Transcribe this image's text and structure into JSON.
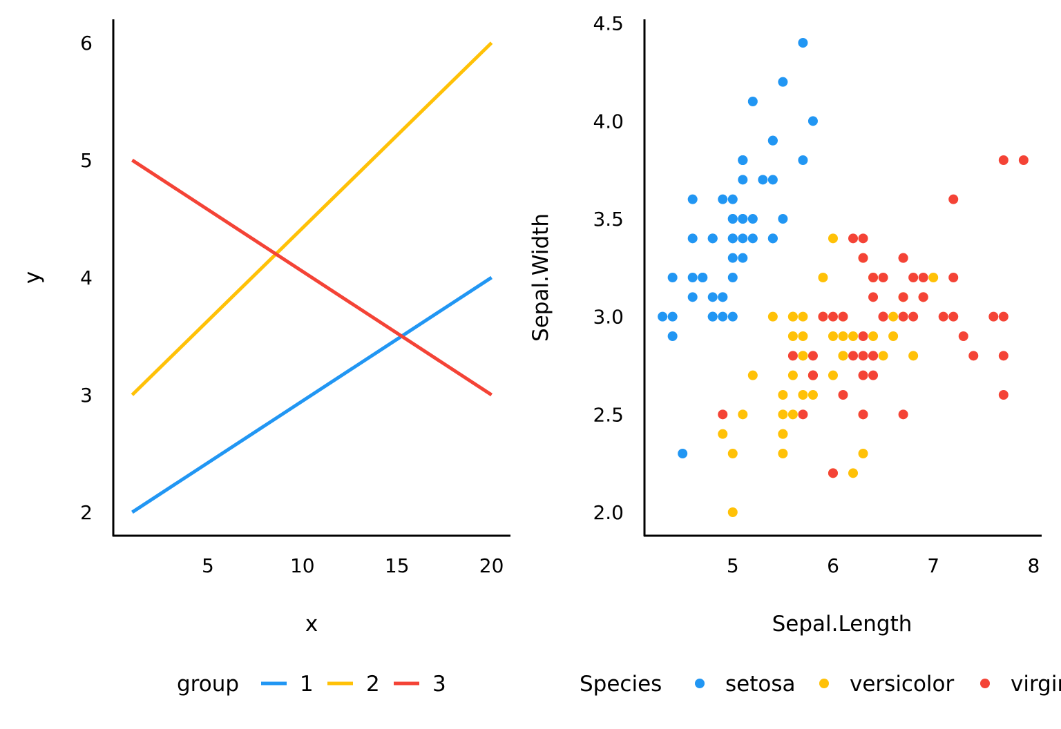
{
  "chart_data": [
    {
      "type": "line",
      "xlabel": "x",
      "ylabel": "y",
      "xlim": [
        0,
        21
      ],
      "ylim": [
        1.8,
        6.2
      ],
      "x_ticks": [
        "5",
        "10",
        "15",
        "20"
      ],
      "y_ticks": [
        "2",
        "3",
        "4",
        "5",
        "6"
      ],
      "legend": {
        "title": "group",
        "placement": "bottom"
      },
      "series": [
        {
          "name": "1",
          "color": "#2196F3",
          "x": [
            1,
            20
          ],
          "y": [
            2,
            4
          ]
        },
        {
          "name": "2",
          "color": "#FFC107",
          "x": [
            1,
            20
          ],
          "y": [
            3,
            6
          ]
        },
        {
          "name": "3",
          "color": "#F44336",
          "x": [
            1,
            20
          ],
          "y": [
            5,
            3
          ]
        }
      ]
    },
    {
      "type": "scatter",
      "xlabel": "Sepal.Length",
      "ylabel": "Sepal.Width",
      "xlim": [
        4.12,
        8.08
      ],
      "ylim": [
        1.88,
        4.52
      ],
      "x_ticks": [
        "5",
        "6",
        "7",
        "8"
      ],
      "y_ticks": [
        "2.0",
        "2.5",
        "3.0",
        "3.5",
        "4.0",
        "4.5"
      ],
      "legend": {
        "title": "Species",
        "placement": "bottom"
      },
      "series": [
        {
          "name": "setosa",
          "color": "#2196F3",
          "points": [
            [
              5.1,
              3.5
            ],
            [
              4.9,
              3.0
            ],
            [
              4.7,
              3.2
            ],
            [
              4.6,
              3.1
            ],
            [
              5.0,
              3.6
            ],
            [
              5.4,
              3.9
            ],
            [
              4.6,
              3.4
            ],
            [
              5.0,
              3.4
            ],
            [
              4.4,
              2.9
            ],
            [
              4.9,
              3.1
            ],
            [
              5.4,
              3.7
            ],
            [
              4.8,
              3.4
            ],
            [
              4.8,
              3.0
            ],
            [
              4.3,
              3.0
            ],
            [
              5.8,
              4.0
            ],
            [
              5.7,
              4.4
            ],
            [
              5.4,
              3.9
            ],
            [
              5.1,
              3.5
            ],
            [
              5.7,
              3.8
            ],
            [
              5.1,
              3.8
            ],
            [
              5.4,
              3.4
            ],
            [
              5.1,
              3.7
            ],
            [
              4.6,
              3.6
            ],
            [
              5.1,
              3.3
            ],
            [
              4.8,
              3.4
            ],
            [
              5.0,
              3.0
            ],
            [
              5.0,
              3.4
            ],
            [
              5.2,
              3.5
            ],
            [
              5.2,
              3.4
            ],
            [
              4.7,
              3.2
            ],
            [
              4.8,
              3.1
            ],
            [
              5.4,
              3.4
            ],
            [
              5.2,
              4.1
            ],
            [
              5.5,
              4.2
            ],
            [
              4.9,
              3.1
            ],
            [
              5.0,
              3.2
            ],
            [
              5.5,
              3.5
            ],
            [
              4.9,
              3.6
            ],
            [
              4.4,
              3.0
            ],
            [
              5.1,
              3.4
            ],
            [
              5.0,
              3.5
            ],
            [
              4.5,
              2.3
            ],
            [
              4.4,
              3.2
            ],
            [
              5.0,
              3.5
            ],
            [
              5.1,
              3.8
            ],
            [
              4.8,
              3.0
            ],
            [
              5.1,
              3.8
            ],
            [
              4.6,
              3.2
            ],
            [
              5.3,
              3.7
            ],
            [
              5.0,
              3.3
            ]
          ]
        },
        {
          "name": "versicolor",
          "color": "#FFC107",
          "points": [
            [
              7.0,
              3.2
            ],
            [
              6.4,
              3.2
            ],
            [
              6.9,
              3.1
            ],
            [
              5.5,
              2.3
            ],
            [
              6.5,
              2.8
            ],
            [
              5.7,
              2.8
            ],
            [
              6.3,
              3.3
            ],
            [
              4.9,
              2.4
            ],
            [
              6.6,
              2.9
            ],
            [
              5.2,
              2.7
            ],
            [
              5.0,
              2.0
            ],
            [
              5.9,
              3.0
            ],
            [
              6.0,
              2.2
            ],
            [
              6.1,
              2.9
            ],
            [
              5.6,
              2.9
            ],
            [
              6.7,
              3.1
            ],
            [
              5.6,
              3.0
            ],
            [
              5.8,
              2.7
            ],
            [
              6.2,
              2.2
            ],
            [
              5.6,
              2.5
            ],
            [
              5.9,
              3.2
            ],
            [
              6.1,
              2.8
            ],
            [
              6.3,
              2.5
            ],
            [
              6.1,
              2.8
            ],
            [
              6.4,
              2.9
            ],
            [
              6.6,
              3.0
            ],
            [
              6.8,
              2.8
            ],
            [
              6.7,
              3.0
            ],
            [
              6.0,
              2.9
            ],
            [
              5.7,
              2.6
            ],
            [
              5.5,
              2.4
            ],
            [
              5.5,
              2.4
            ],
            [
              5.8,
              2.7
            ],
            [
              6.0,
              2.7
            ],
            [
              5.4,
              3.0
            ],
            [
              6.0,
              3.4
            ],
            [
              6.7,
              3.1
            ],
            [
              6.3,
              2.3
            ],
            [
              5.6,
              3.0
            ],
            [
              5.5,
              2.5
            ],
            [
              5.5,
              2.6
            ],
            [
              6.1,
              3.0
            ],
            [
              5.8,
              2.6
            ],
            [
              5.0,
              2.3
            ],
            [
              5.6,
              2.7
            ],
            [
              5.7,
              3.0
            ],
            [
              5.7,
              2.9
            ],
            [
              6.2,
              2.9
            ],
            [
              5.1,
              2.5
            ],
            [
              5.7,
              2.8
            ]
          ]
        },
        {
          "name": "virginica",
          "color": "#F44336",
          "points": [
            [
              6.3,
              3.3
            ],
            [
              5.8,
              2.7
            ],
            [
              7.1,
              3.0
            ],
            [
              6.3,
              2.9
            ],
            [
              6.5,
              3.0
            ],
            [
              7.6,
              3.0
            ],
            [
              4.9,
              2.5
            ],
            [
              7.3,
              2.9
            ],
            [
              6.7,
              2.5
            ],
            [
              7.2,
              3.6
            ],
            [
              6.5,
              3.2
            ],
            [
              6.4,
              2.7
            ],
            [
              6.8,
              3.0
            ],
            [
              5.7,
              2.5
            ],
            [
              5.8,
              2.8
            ],
            [
              6.4,
              3.2
            ],
            [
              6.5,
              3.0
            ],
            [
              7.7,
              3.8
            ],
            [
              7.7,
              2.6
            ],
            [
              6.0,
              2.2
            ],
            [
              6.9,
              3.2
            ],
            [
              5.6,
              2.8
            ],
            [
              7.7,
              2.8
            ],
            [
              6.3,
              2.7
            ],
            [
              6.7,
              3.3
            ],
            [
              7.2,
              3.2
            ],
            [
              6.2,
              2.8
            ],
            [
              6.1,
              3.0
            ],
            [
              6.4,
              2.8
            ],
            [
              7.2,
              3.0
            ],
            [
              7.4,
              2.8
            ],
            [
              7.9,
              3.8
            ],
            [
              6.4,
              2.8
            ],
            [
              6.3,
              2.8
            ],
            [
              6.1,
              2.6
            ],
            [
              7.7,
              3.0
            ],
            [
              6.3,
              3.4
            ],
            [
              6.4,
              3.1
            ],
            [
              6.0,
              3.0
            ],
            [
              6.9,
              3.1
            ],
            [
              6.7,
              3.1
            ],
            [
              6.9,
              3.1
            ],
            [
              5.8,
              2.7
            ],
            [
              6.8,
              3.2
            ],
            [
              6.7,
              3.3
            ],
            [
              6.7,
              3.0
            ],
            [
              6.3,
              2.5
            ],
            [
              6.5,
              3.0
            ],
            [
              6.2,
              3.4
            ],
            [
              5.9,
              3.0
            ]
          ]
        }
      ]
    }
  ]
}
